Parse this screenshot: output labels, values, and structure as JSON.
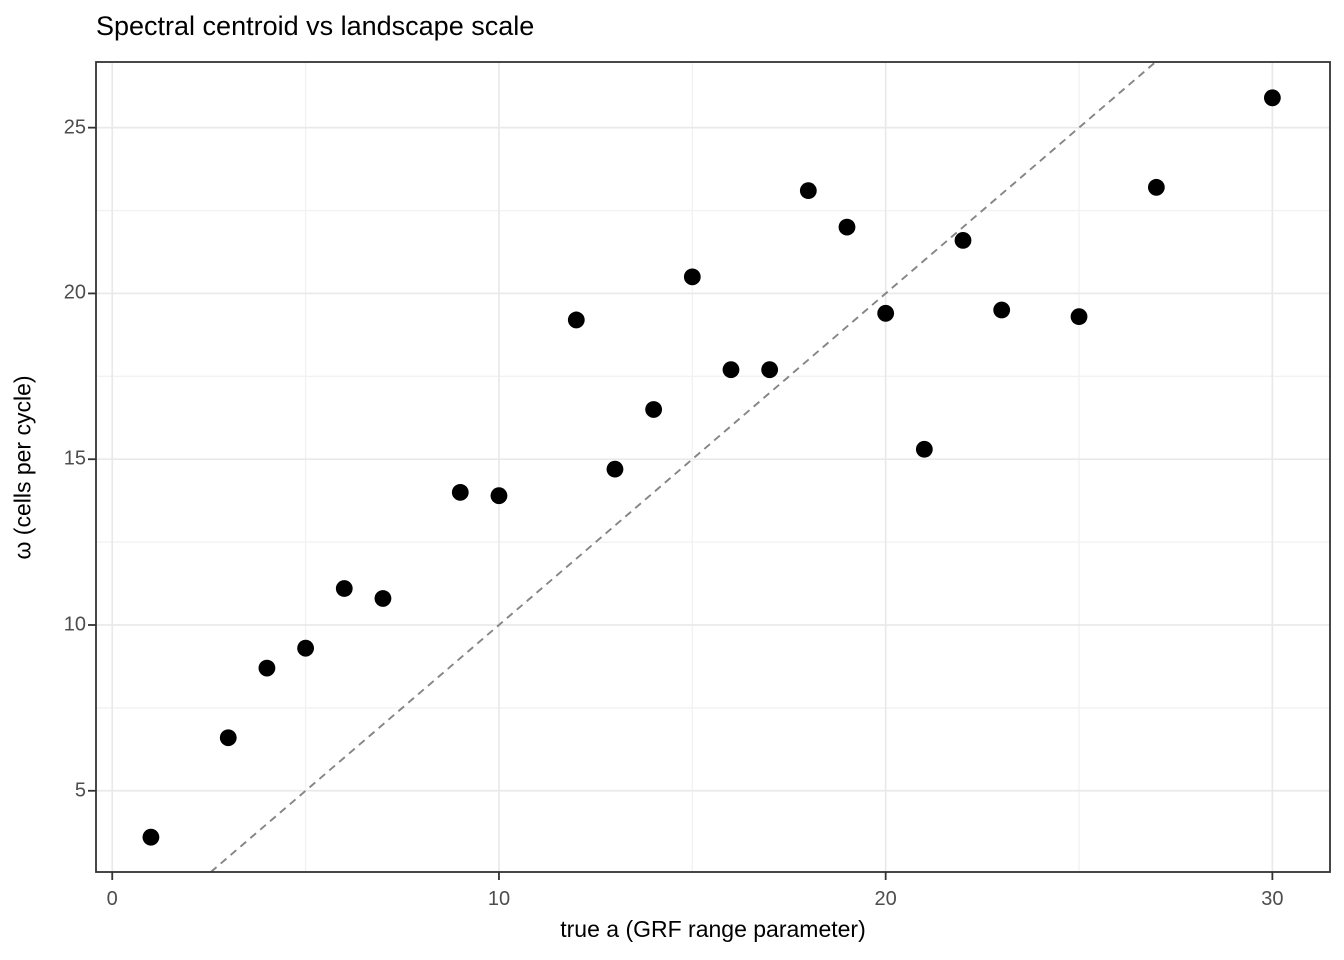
{
  "chart_data": {
    "type": "scatter",
    "title": "Spectral centroid vs landscape scale",
    "xlabel": "true a (GRF range parameter)",
    "ylabel": "ω (cells per cycle)",
    "xlim": [
      -0.42,
      31.49
    ],
    "ylim": [
      2.55,
      26.98
    ],
    "x_major_ticks": [
      0,
      10,
      20,
      30
    ],
    "x_minor_ticks": [
      5,
      15,
      25
    ],
    "y_major_ticks": [
      5,
      10,
      15,
      20,
      25
    ],
    "y_minor_ticks": [
      7.5,
      12.5,
      17.5,
      22.5
    ],
    "grid": true,
    "legend": false,
    "points": [
      [
        1,
        3.6
      ],
      [
        3,
        6.6
      ],
      [
        4,
        8.7
      ],
      [
        5,
        9.3
      ],
      [
        6,
        11.1
      ],
      [
        7,
        10.8
      ],
      [
        9,
        14.0
      ],
      [
        10,
        13.9
      ],
      [
        12,
        19.2
      ],
      [
        13,
        14.7
      ],
      [
        14,
        16.5
      ],
      [
        15,
        20.5
      ],
      [
        16,
        17.7
      ],
      [
        17,
        17.7
      ],
      [
        18,
        23.1
      ],
      [
        19,
        22.0
      ],
      [
        20,
        19.4
      ],
      [
        21,
        15.3
      ],
      [
        22,
        21.6
      ],
      [
        23,
        19.5
      ],
      [
        25,
        19.3
      ],
      [
        27,
        23.2
      ],
      [
        30,
        25.9
      ]
    ],
    "reference_line": {
      "slope": 1,
      "intercept": 0,
      "style": "dashed"
    },
    "colors": {
      "point": "#000000",
      "grid_major": "#e9e9e9",
      "grid_minor": "#f2f2f2",
      "panel_border": "#333333",
      "tick_mark": "#333333",
      "tick_label": "#4d4d4d",
      "reference_line": "#858585",
      "background": "#ffffff"
    }
  }
}
